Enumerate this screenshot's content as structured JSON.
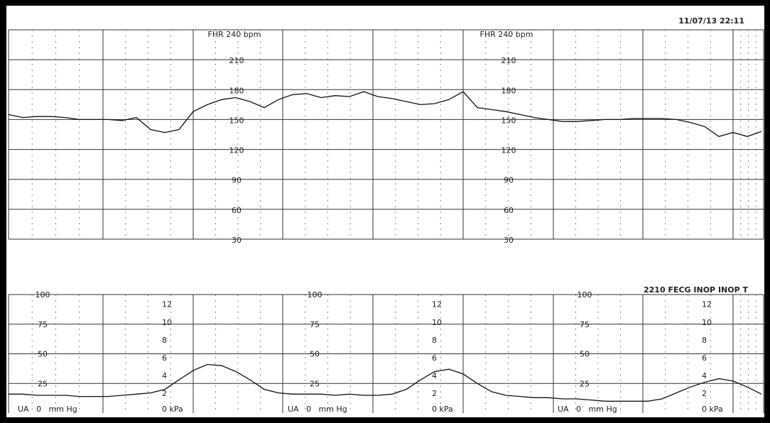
{
  "header": {
    "timestamp": "11/07/13 22:11"
  },
  "status": "2210 FECG INOP INOP T",
  "fhr_scales": [
    {
      "title": "FHR 240 bpm",
      "ticks": [
        210,
        180,
        150,
        120,
        90,
        60,
        30
      ]
    },
    {
      "title": "FHR 240 bpm",
      "ticks": [
        210,
        180,
        150,
        120,
        90,
        60,
        30
      ]
    }
  ],
  "ua_scales": [
    {
      "mmhg_ticks": [
        100,
        75,
        50,
        25
      ],
      "kpa_ticks": [
        12,
        10,
        8,
        6,
        4,
        2,
        {
          "value": 0,
          "label": "0 kPa"
        }
      ],
      "unit": "UA   0   mm Hg"
    },
    {
      "mmhg_ticks": [
        100,
        75,
        50,
        25
      ],
      "kpa_ticks": [
        12,
        10,
        8,
        6,
        4,
        2,
        {
          "value": 0,
          "label": "0 kPa"
        }
      ],
      "unit": "UA   0   mm Hg"
    },
    {
      "mmhg_ticks": [
        100,
        75,
        50,
        25
      ],
      "kpa_ticks": [
        12,
        10,
        8,
        6,
        4,
        2,
        {
          "value": 0,
          "label": "0 kPa"
        }
      ],
      "unit": "UA   0   mm Hg"
    }
  ],
  "fhr_trace": [
    155,
    152,
    153,
    153,
    152,
    150,
    150,
    150,
    149,
    152,
    140,
    137,
    140,
    158,
    165,
    170,
    172,
    168,
    162,
    170,
    175,
    176,
    172,
    174,
    173,
    178,
    173,
    171,
    168,
    165,
    166,
    170,
    178,
    162,
    160,
    158,
    155,
    152,
    150,
    148,
    148,
    149,
    150,
    150,
    151,
    151,
    151,
    150,
    147,
    143,
    133,
    137,
    133,
    138
  ],
  "ua_trace": [
    16,
    16,
    15,
    15,
    15,
    14,
    14,
    14,
    15,
    16,
    17,
    20,
    28,
    36,
    41,
    40,
    35,
    28,
    20,
    17,
    16,
    16,
    16,
    15,
    16,
    15,
    15,
    16,
    20,
    28,
    35,
    37,
    33,
    25,
    18,
    15,
    14,
    13,
    13,
    12,
    12,
    11,
    10,
    10,
    10,
    10,
    12,
    17,
    22,
    26,
    29,
    27,
    22,
    16
  ]
}
